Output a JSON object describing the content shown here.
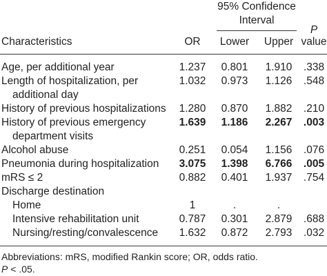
{
  "header": {
    "ci_title_line1": "95% Confidence",
    "ci_title_line2": "Interval",
    "characteristics": "Characteristics",
    "or": "OR",
    "lower": "Lower",
    "upper": "Upper",
    "p_letter": "P",
    "p_value": "value"
  },
  "rows": [
    {
      "label": [
        "Age, per additional year"
      ],
      "or": "1.237",
      "lower": "0.801",
      "upper": "1.910",
      "p": ".338",
      "bold": false
    },
    {
      "label": [
        "Length of hospitalization, per",
        "additional day"
      ],
      "or": "1.032",
      "lower": "0.973",
      "upper": "1.126",
      "p": ".548",
      "bold": false
    },
    {
      "label": [
        "History of previous hospitalizations"
      ],
      "or": "1.280",
      "lower": "0.870",
      "upper": "1.882",
      "p": ".210",
      "bold": false
    },
    {
      "label": [
        "History of previous emergency",
        "department visits"
      ],
      "or": "1.639",
      "lower": "1.186",
      "upper": "2.267",
      "p": ".003",
      "bold": true
    },
    {
      "label": [
        "Alcohol abuse"
      ],
      "or": "0.251",
      "lower": "0.054",
      "upper": "1.156",
      "p": ".076",
      "bold": false
    },
    {
      "label": [
        "Pneumonia during hospitalization"
      ],
      "or": "3.075",
      "lower": "1.398",
      "upper": "6.766",
      "p": ".005",
      "bold": true
    },
    {
      "label": [
        "mRS ≤ 2"
      ],
      "or": "0.882",
      "lower": "0.401",
      "upper": "1.937",
      "p": ".754",
      "bold": false
    },
    {
      "label": [
        "Discharge destination"
      ],
      "or": "",
      "lower": "",
      "upper": "",
      "p": "",
      "bold": false
    },
    {
      "label": [
        "Home"
      ],
      "or": "1",
      "lower": ".",
      "upper": ".",
      "p": "",
      "bold": false,
      "indent": true
    },
    {
      "label": [
        "Intensive rehabilitation unit"
      ],
      "or": "0.787",
      "lower": "0.301",
      "upper": "2.879",
      "p": ".688",
      "bold": false,
      "indent": true
    },
    {
      "label": [
        "Nursing/resting/convalescence"
      ],
      "or": "1.632",
      "lower": "0.872",
      "upper": "2.793",
      "p": ".032",
      "bold": false,
      "indent": true
    }
  ],
  "footnotes": {
    "abbreviations": "Abbreviations: mRS, modified Rankin score; OR, odds ratio.",
    "p_letter": "P",
    "p_rest": " < .05."
  }
}
